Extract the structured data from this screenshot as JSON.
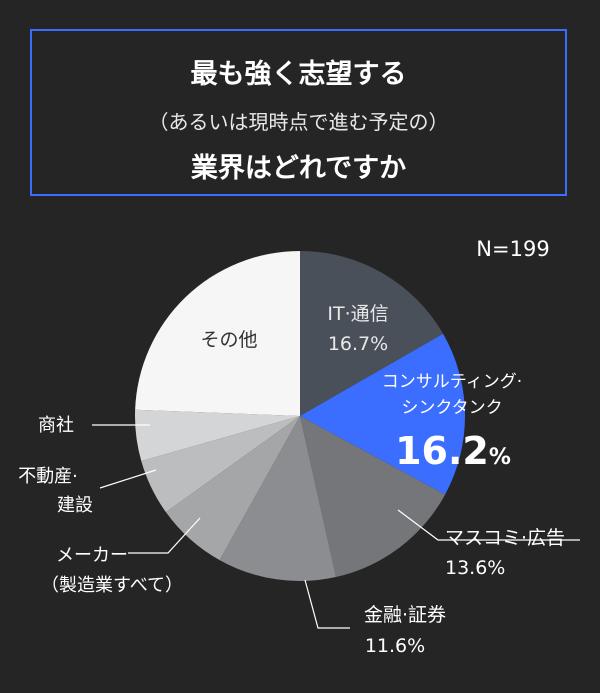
{
  "title": {
    "line1": "最も強く志望する",
    "line2": "（あるいは現時点で進む予定の）",
    "line3": "業界はどれですか"
  },
  "colors": {
    "background": "#252525",
    "accent": "#3b6dff",
    "frame": "#3b6dff"
  },
  "chart_data": {
    "type": "pie",
    "n_label": "N=199",
    "slices": [
      {
        "label": "IT·通信",
        "value": 16.7,
        "value_label": "16.7%",
        "color": "#4a5059"
      },
      {
        "label": "コンサルティング·\nシンクタンク",
        "value": 16.2,
        "value_label": "16.2%",
        "color": "#3b6dff"
      },
      {
        "label": "マスコミ·広告",
        "value": 13.6,
        "value_label": "13.6%",
        "color": "#74767a"
      },
      {
        "label": "金融·証券",
        "value": 11.6,
        "value_label": "11.6%",
        "color": "#8b8d90"
      },
      {
        "label": "メーカー\n（製造業すべて）",
        "value": 7.0,
        "value_label": "",
        "color": "#a5a6a8"
      },
      {
        "label": "不動産·\n建設",
        "value": 5.5,
        "value_label": "",
        "color": "#bcbdbf"
      },
      {
        "label": "商社",
        "value": 5.0,
        "value_label": "",
        "color": "#d4d5d6"
      },
      {
        "label": "その他",
        "value": 24.4,
        "value_label": "",
        "color": "#f6f6f6"
      }
    ]
  }
}
